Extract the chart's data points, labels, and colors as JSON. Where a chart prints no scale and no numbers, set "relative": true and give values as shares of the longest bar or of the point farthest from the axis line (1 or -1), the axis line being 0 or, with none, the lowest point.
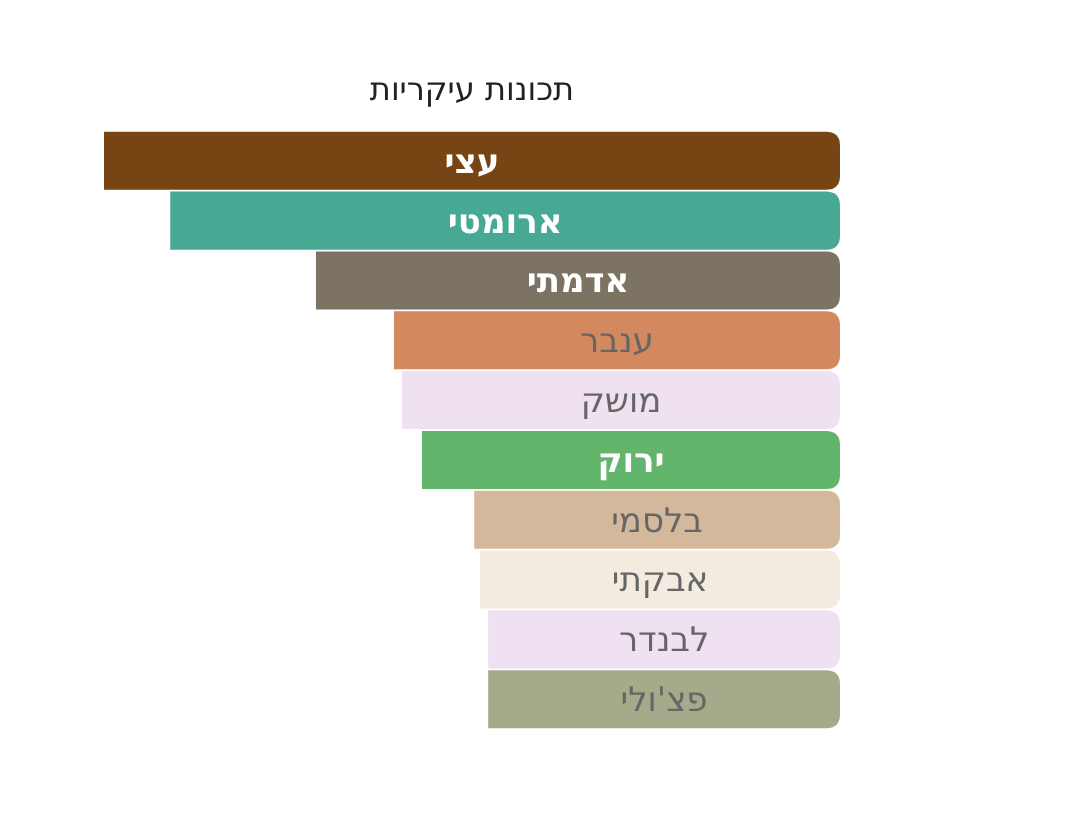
{
  "chart_data": {
    "type": "bar",
    "orientation": "horizontal",
    "relative": true,
    "title": "תכונות עיקריות",
    "categories": [
      "עצי",
      "ארומטי",
      "אדמתי",
      "ענבר",
      "מושק",
      "ירוק",
      "בלסמי",
      "אבקתי",
      "לבנדר",
      "פצ'ולי"
    ],
    "values": [
      1,
      0.91,
      0.712,
      0.606,
      0.595,
      0.568,
      0.497,
      0.489,
      0.478,
      0.478
    ],
    "colors": [
      "#774414",
      "#47a893",
      "#7d7363",
      "#d3885f",
      "#f0e1f0",
      "#63b56b",
      "#d3b89c",
      "#f4ebe0",
      "#f0e1f2",
      "#a6a98a"
    ]
  }
}
